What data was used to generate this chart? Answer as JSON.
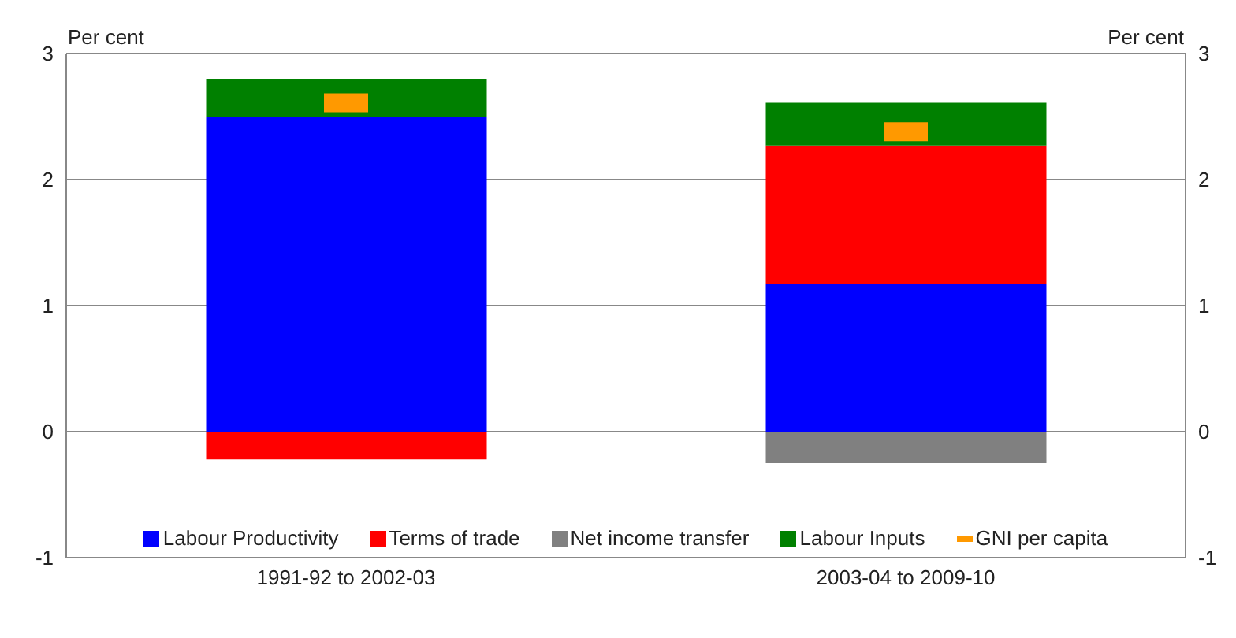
{
  "chart_data": {
    "type": "bar",
    "stacked": true,
    "categories": [
      "1991-92 to 2002-03",
      "2003-04 to 2009-10"
    ],
    "series": [
      {
        "name": "Labour Productivity",
        "color": "#0000ff",
        "values": [
          2.5,
          1.17
        ]
      },
      {
        "name": "Terms of trade",
        "color": "#ff0000",
        "values": [
          -0.22,
          1.1
        ]
      },
      {
        "name": "Net income transfer",
        "color": "#808080",
        "values": [
          null,
          -0.25
        ]
      },
      {
        "name": "Labour Inputs",
        "color": "#008000",
        "values": [
          0.3,
          0.34
        ]
      },
      {
        "name": "GNI per capita",
        "color": "#ff9900",
        "type": "scatter",
        "values": [
          2.61,
          2.38
        ]
      }
    ],
    "ylabel": "Per cent",
    "y2label": "Per cent",
    "ylim": [
      -1,
      3
    ],
    "yticks": [
      -1,
      0,
      1,
      2,
      3
    ],
    "y2lim": [
      -1,
      3
    ],
    "y2ticks": [
      -1,
      0,
      1,
      2,
      3
    ],
    "grid": "y",
    "legend": "bottom"
  }
}
